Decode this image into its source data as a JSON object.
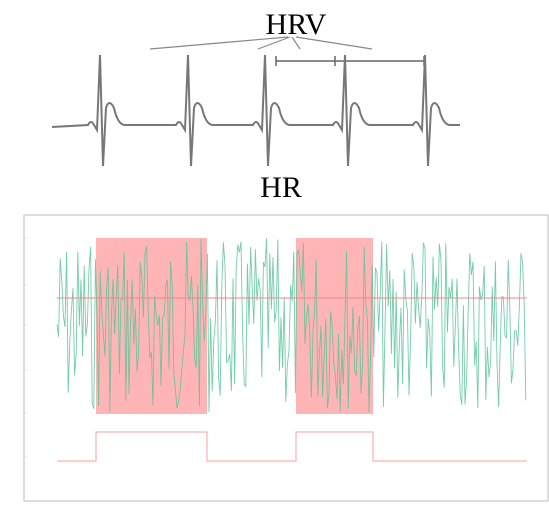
{
  "figure": {
    "top_label": "HRV",
    "bottom_label": "HR"
  }
}
